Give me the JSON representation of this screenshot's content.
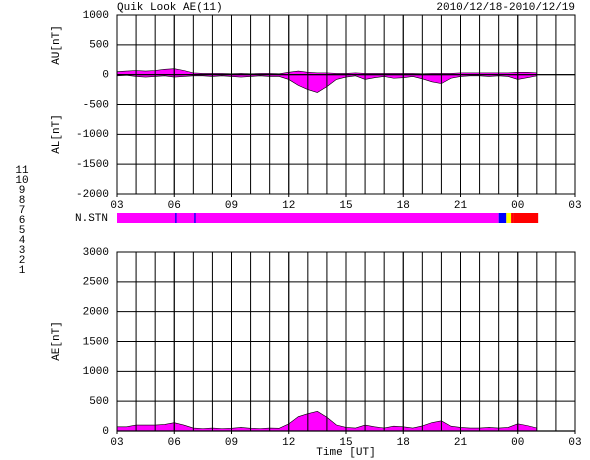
{
  "chart_data": [
    {
      "type": "area",
      "title": "Quik Look AE(11)",
      "subtitle": "2010/12/18-2010/12/19",
      "y_labels": [
        "AU[nT]",
        "AL[nT]"
      ],
      "xlim": [
        3,
        27
      ],
      "xticks": [
        {
          "value": 3,
          "label": "03"
        },
        {
          "value": 6,
          "label": "06"
        },
        {
          "value": 9,
          "label": "09"
        },
        12,
        15,
        18,
        21,
        {
          "value": 24,
          "label": "00"
        },
        {
          "value": 27,
          "label": "03"
        }
      ],
      "ylim": [
        -2000,
        1000
      ],
      "yticks": [
        -2000,
        -1500,
        -1000,
        -500,
        0,
        500,
        1000
      ],
      "grid": true,
      "x": [
        3,
        3.5,
        4,
        4.5,
        5,
        5.5,
        6,
        6.5,
        7,
        7.5,
        8,
        8.5,
        9,
        9.5,
        10,
        10.5,
        11,
        11.5,
        12,
        12.5,
        13,
        13.5,
        14,
        14.5,
        15,
        15.5,
        16,
        16.5,
        17,
        17.5,
        18,
        18.5,
        19,
        19.5,
        20,
        20.5,
        21,
        21.5,
        22,
        22.5,
        23,
        23.5,
        24,
        24.5,
        25
      ],
      "series": [
        {
          "name": "AU",
          "color": "#ff00ff",
          "values": [
            50,
            60,
            70,
            60,
            70,
            90,
            100,
            70,
            30,
            20,
            20,
            20,
            15,
            20,
            15,
            20,
            20,
            15,
            40,
            60,
            40,
            30,
            30,
            20,
            20,
            30,
            20,
            20,
            20,
            20,
            20,
            20,
            15,
            20,
            20,
            20,
            30,
            30,
            30,
            30,
            30,
            30,
            40,
            40,
            30
          ]
        },
        {
          "name": "AL",
          "color": "#ff00ff",
          "values": [
            -20,
            -10,
            -30,
            -40,
            -30,
            -20,
            -40,
            -30,
            -20,
            -20,
            -30,
            -20,
            -30,
            -40,
            -30,
            -20,
            -30,
            -30,
            -80,
            -180,
            -250,
            -300,
            -200,
            -80,
            -40,
            -20,
            -80,
            -50,
            -30,
            -60,
            -50,
            -30,
            -70,
            -120,
            -150,
            -60,
            -30,
            -20,
            -20,
            -30,
            -20,
            -30,
            -80,
            -50,
            -20
          ]
        }
      ]
    },
    {
      "type": "stations",
      "label": "N.STN",
      "xlim": [
        3,
        27
      ],
      "legend": [
        {
          "n": 11,
          "color": "#00e0e0"
        },
        {
          "n": 10,
          "color": "#ff00ff"
        },
        {
          "n": 9,
          "color": "#0000ff"
        },
        {
          "n": 8,
          "color": "#ffff00"
        },
        {
          "n": 7,
          "color": "#a0e0a0"
        },
        {
          "n": 6,
          "color": "#ff0000"
        },
        {
          "n": 5,
          "color": "#d0d0d0"
        },
        {
          "n": 4,
          "color": "#a0a0a0"
        },
        {
          "n": 3,
          "color": "#00a0a0"
        },
        {
          "n": 2,
          "color": "#a000a0"
        },
        {
          "n": 1,
          "color": "#0000c0"
        }
      ],
      "segments": [
        {
          "x0": 3,
          "x1": 23.0,
          "n": 10
        },
        {
          "x0": 6.05,
          "x1": 6.12,
          "n": 9
        },
        {
          "x0": 7.05,
          "x1": 7.12,
          "n": 9
        },
        {
          "x0": 23.0,
          "x1": 23.4,
          "n": 9
        },
        {
          "x0": 23.4,
          "x1": 23.65,
          "n": 8
        },
        {
          "x0": 23.65,
          "x1": 23.8,
          "n": 6
        },
        {
          "x0": 23.8,
          "x1": 25.07,
          "n": 6
        }
      ]
    },
    {
      "type": "area",
      "y_label": "AE[nT]",
      "x_label": "Time [UT]",
      "xlim": [
        3,
        27
      ],
      "xticks": [
        {
          "value": 3,
          "label": "03"
        },
        {
          "value": 6,
          "label": "06"
        },
        {
          "value": 9,
          "label": "09"
        },
        12,
        15,
        18,
        21,
        {
          "value": 24,
          "label": "00"
        },
        {
          "value": 27,
          "label": "03"
        }
      ],
      "ylim": [
        0,
        3000
      ],
      "yticks": [
        0,
        500,
        1000,
        1500,
        2000,
        2500,
        3000
      ],
      "grid": true,
      "x": [
        3,
        3.5,
        4,
        4.5,
        5,
        5.5,
        6,
        6.5,
        7,
        7.5,
        8,
        8.5,
        9,
        9.5,
        10,
        10.5,
        11,
        11.5,
        12,
        12.5,
        13,
        13.5,
        14,
        14.5,
        15,
        15.5,
        16,
        16.5,
        17,
        17.5,
        18,
        18.5,
        19,
        19.5,
        20,
        20.5,
        21,
        21.5,
        22,
        22.5,
        23,
        23.5,
        24,
        24.5,
        25
      ],
      "series": [
        {
          "name": "AE",
          "color": "#ff00ff",
          "values": [
            70,
            70,
            100,
            100,
            100,
            110,
            140,
            100,
            50,
            40,
            50,
            40,
            45,
            60,
            45,
            40,
            50,
            45,
            120,
            240,
            290,
            330,
            230,
            100,
            60,
            50,
            100,
            70,
            50,
            80,
            70,
            50,
            85,
            140,
            170,
            80,
            60,
            50,
            50,
            60,
            50,
            60,
            120,
            90,
            50
          ]
        }
      ]
    }
  ]
}
